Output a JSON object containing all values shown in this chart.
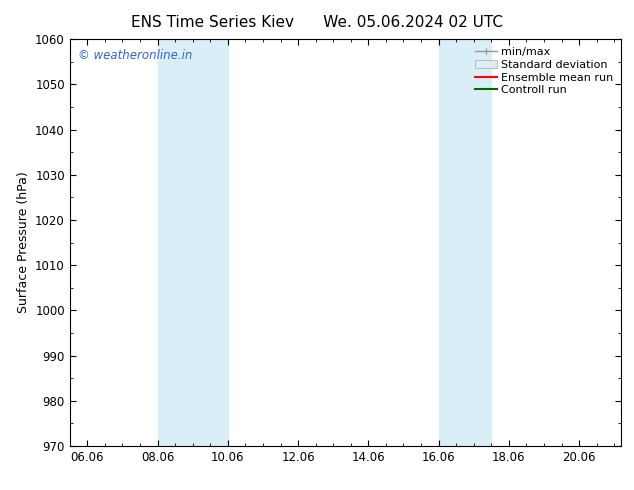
{
  "title_left": "ENS Time Series Kiev",
  "title_right": "We. 05.06.2024 02 UTC",
  "ylabel": "Surface Pressure (hPa)",
  "ylim": [
    970,
    1060
  ],
  "yticks": [
    970,
    980,
    990,
    1000,
    1010,
    1020,
    1030,
    1040,
    1050,
    1060
  ],
  "xlim_start": 5.5,
  "xlim_end": 21.2,
  "xtick_labels": [
    "06.06",
    "08.06",
    "10.06",
    "12.06",
    "14.06",
    "16.06",
    "18.06",
    "20.06"
  ],
  "xtick_positions": [
    6.0,
    8.0,
    10.0,
    12.0,
    14.0,
    16.0,
    18.0,
    20.0
  ],
  "shaded_bands": [
    {
      "x_start": 8.0,
      "x_end": 10.0
    },
    {
      "x_start": 16.0,
      "x_end": 17.5
    }
  ],
  "shaded_color": "#daeef7",
  "watermark_text": "© weatheronline.in",
  "watermark_color": "#3366bb",
  "bg_color": "#ffffff",
  "title_fontsize": 11,
  "axis_fontsize": 9,
  "tick_fontsize": 8.5,
  "legend_fontsize": 8
}
